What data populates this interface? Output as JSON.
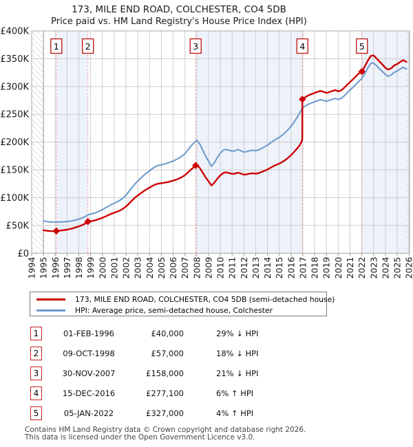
{
  "header": {
    "title": "173, MILE END ROAD, COLCHESTER, CO4 5DB",
    "subtitle": "Price paid vs. HM Land Registry's House Price Index (HPI)"
  },
  "legend": {
    "series1": "173, MILE END ROAD, COLCHESTER, CO4 5DB (semi-detached house)",
    "series2": "HPI: Average price, semi-detached house, Colchester"
  },
  "transactions": [
    {
      "num": "1",
      "date": "01-FEB-1996",
      "price": "£40,000",
      "hpi": "29% ↓ HPI"
    },
    {
      "num": "2",
      "date": "09-OCT-1998",
      "price": "£57,000",
      "hpi": "18% ↓ HPI"
    },
    {
      "num": "3",
      "date": "30-NOV-2007",
      "price": "£158,000",
      "hpi": "21% ↓ HPI"
    },
    {
      "num": "4",
      "date": "15-DEC-2016",
      "price": "£277,100",
      "hpi": "6% ↑ HPI"
    },
    {
      "num": "5",
      "date": "05-JAN-2022",
      "price": "£327,000",
      "hpi": "4% ↑ HPI"
    }
  ],
  "footer": {
    "line1": "Contains HM Land Registry data © Crown copyright and database right 2026.",
    "line2": "This data is licensed under the Open Government Licence v3.0."
  },
  "chart_data": {
    "type": "line",
    "title": "173, MILE END ROAD, COLCHESTER, CO4 5DB — Price paid vs. HPI",
    "x_range": [
      1994,
      2026.05
    ],
    "y_max": 400,
    "y_unit": "GBP thousands",
    "y_tick_labels": [
      "£400K",
      "£350K",
      "£300K",
      "£250K",
      "£200K",
      "£150K",
      "£100K",
      "£50K",
      "£0"
    ],
    "y_tick_values": [
      400,
      350,
      300,
      250,
      200,
      150,
      100,
      50,
      0
    ],
    "x_ticks": [
      1994,
      1995,
      1996,
      1997,
      1998,
      1999,
      2000,
      2001,
      2002,
      2003,
      2004,
      2005,
      2006,
      2007,
      2008,
      2009,
      2010,
      2011,
      2012,
      2013,
      2014,
      2015,
      2016,
      2017,
      2018,
      2019,
      2020,
      2021,
      2022,
      2023,
      2024,
      2025,
      2026
    ],
    "colors": {
      "property": "#cc0000",
      "hpi": "#6e9bcd",
      "band": "#eef2fb",
      "dashed": "#f49a9a",
      "grid": "#cccccc",
      "data_start_line": "#8a8a8a",
      "border": "#aaaaaa",
      "hatch": "#bfbfbf",
      "flag_border": "#c22020"
    },
    "legend_position": "bottom",
    "grid": true,
    "shaded_spans": [
      [
        1996.09,
        1998.77
      ],
      [
        2007.91,
        2016.96
      ],
      [
        2022.01,
        2026.05
      ]
    ],
    "hatch_spans": [
      [
        1994,
        1995
      ],
      [
        2025.78,
        2026.05
      ]
    ],
    "sales": [
      {
        "label": "1",
        "year": 1996.09,
        "value": 40
      },
      {
        "label": "2",
        "year": 1998.77,
        "value": 57
      },
      {
        "label": "3",
        "year": 2007.91,
        "value": 158
      },
      {
        "label": "4",
        "year": 2016.96,
        "value": 277.1
      },
      {
        "label": "5",
        "year": 2022.01,
        "value": 327
      }
    ],
    "series": [
      {
        "name": "price-paid",
        "color_key": "property",
        "points": [
          [
            1995,
            41.5
          ],
          [
            1995.25,
            40.7
          ],
          [
            1995.5,
            40.1
          ],
          [
            1995.75,
            39.9
          ],
          [
            1996.09,
            40
          ],
          [
            1996.25,
            40.3
          ],
          [
            1996.5,
            41
          ],
          [
            1996.75,
            41.7
          ],
          [
            1997,
            42.6
          ],
          [
            1997.25,
            43.7
          ],
          [
            1997.5,
            45
          ],
          [
            1997.75,
            46.7
          ],
          [
            1998,
            48.5
          ],
          [
            1998.25,
            50.4
          ],
          [
            1998.5,
            53
          ],
          [
            1998.77,
            57
          ],
          [
            1999,
            57.7
          ],
          [
            1999.25,
            58.7
          ],
          [
            1999.5,
            60
          ],
          [
            1999.75,
            61.9
          ],
          [
            2000,
            63.9
          ],
          [
            2000.25,
            66.2
          ],
          [
            2000.5,
            68.6
          ],
          [
            2000.75,
            71
          ],
          [
            2001,
            72.9
          ],
          [
            2001.25,
            74.8
          ],
          [
            2001.5,
            77.1
          ],
          [
            2001.75,
            80.2
          ],
          [
            2002,
            84.1
          ],
          [
            2002.25,
            89.2
          ],
          [
            2002.5,
            94.7
          ],
          [
            2002.75,
            99.8
          ],
          [
            2003,
            104
          ],
          [
            2003.25,
            107.9
          ],
          [
            2003.5,
            111.7
          ],
          [
            2003.75,
            115.2
          ],
          [
            2004,
            118.2
          ],
          [
            2004.25,
            121.2
          ],
          [
            2004.5,
            123.8
          ],
          [
            2004.75,
            125.3
          ],
          [
            2005,
            125.9
          ],
          [
            2005.25,
            126.9
          ],
          [
            2005.5,
            127.9
          ],
          [
            2005.75,
            129.3
          ],
          [
            2006,
            130.6
          ],
          [
            2006.25,
            132.4
          ],
          [
            2006.5,
            134.6
          ],
          [
            2006.75,
            137.2
          ],
          [
            2007,
            140.5
          ],
          [
            2007.25,
            145.4
          ],
          [
            2007.5,
            150.3
          ],
          [
            2007.75,
            154.8
          ],
          [
            2007.91,
            158
          ],
          [
            2008,
            159
          ],
          [
            2008.25,
            153.8
          ],
          [
            2008.5,
            145.2
          ],
          [
            2008.75,
            136.6
          ],
          [
            2009,
            129.5
          ],
          [
            2009.25,
            122
          ],
          [
            2009.5,
            127.1
          ],
          [
            2009.75,
            134.4
          ],
          [
            2010,
            140.2
          ],
          [
            2010.25,
            144.4
          ],
          [
            2010.5,
            145.6
          ],
          [
            2010.75,
            144.4
          ],
          [
            2011,
            142.8
          ],
          [
            2011.25,
            143.5
          ],
          [
            2011.5,
            145
          ],
          [
            2011.75,
            143.4
          ],
          [
            2012,
            141.4
          ],
          [
            2012.25,
            142.2
          ],
          [
            2012.5,
            143.3
          ],
          [
            2012.75,
            144
          ],
          [
            2013,
            143.2
          ],
          [
            2013.25,
            144.3
          ],
          [
            2013.5,
            146.2
          ],
          [
            2013.75,
            148.5
          ],
          [
            2014,
            150.7
          ],
          [
            2014.25,
            153.8
          ],
          [
            2014.5,
            156.8
          ],
          [
            2014.75,
            159.1
          ],
          [
            2015,
            161.3
          ],
          [
            2015.25,
            164.3
          ],
          [
            2015.5,
            167.7
          ],
          [
            2015.75,
            171.9
          ],
          [
            2016,
            176.4
          ],
          [
            2016.25,
            182.1
          ],
          [
            2016.5,
            188.2
          ],
          [
            2016.75,
            195
          ],
          [
            2016.9,
            201
          ],
          [
            2016.955,
            206
          ],
          [
            2016.96,
            277.1
          ],
          [
            2017.25,
            281.5
          ],
          [
            2017.5,
            284.5
          ],
          [
            2017.75,
            286.5
          ],
          [
            2018,
            288.5
          ],
          [
            2018.25,
            290.5
          ],
          [
            2018.5,
            292
          ],
          [
            2018.75,
            290.5
          ],
          [
            2019,
            288.5
          ],
          [
            2019.25,
            290
          ],
          [
            2019.5,
            292
          ],
          [
            2019.75,
            293.5
          ],
          [
            2020,
            291.5
          ],
          [
            2020.25,
            293
          ],
          [
            2020.5,
            297.5
          ],
          [
            2020.75,
            303
          ],
          [
            2021,
            308
          ],
          [
            2021.25,
            313
          ],
          [
            2021.5,
            318.5
          ],
          [
            2021.75,
            323.5
          ],
          [
            2022.01,
            327
          ],
          [
            2022.25,
            336
          ],
          [
            2022.5,
            346
          ],
          [
            2022.75,
            355
          ],
          [
            2023,
            356
          ],
          [
            2023.25,
            350.5
          ],
          [
            2023.5,
            345
          ],
          [
            2023.75,
            339.5
          ],
          [
            2024,
            333.5
          ],
          [
            2024.25,
            330.5
          ],
          [
            2024.5,
            333
          ],
          [
            2024.75,
            338
          ],
          [
            2025,
            340.5
          ],
          [
            2025.25,
            344
          ],
          [
            2025.5,
            347.5
          ],
          [
            2025.78,
            344.5
          ]
        ]
      },
      {
        "name": "hpi",
        "color_key": "hpi",
        "points": [
          [
            1995,
            58.5
          ],
          [
            1995.25,
            57.3
          ],
          [
            1995.5,
            56.4
          ],
          [
            1995.75,
            56
          ],
          [
            1996,
            56
          ],
          [
            1996.25,
            56.2
          ],
          [
            1996.5,
            56.4
          ],
          [
            1996.75,
            56.6
          ],
          [
            1997,
            57
          ],
          [
            1997.25,
            57.6
          ],
          [
            1997.5,
            58.6
          ],
          [
            1997.75,
            60
          ],
          [
            1998,
            61.5
          ],
          [
            1998.25,
            63.2
          ],
          [
            1998.5,
            65.5
          ],
          [
            1998.77,
            69
          ],
          [
            1999,
            70.5
          ],
          [
            1999.25,
            71.8
          ],
          [
            1999.5,
            73.5
          ],
          [
            1999.75,
            76
          ],
          [
            2000,
            78.5
          ],
          [
            2000.25,
            81.5
          ],
          [
            2000.5,
            84.5
          ],
          [
            2000.75,
            87.5
          ],
          [
            2001,
            90
          ],
          [
            2001.25,
            92.5
          ],
          [
            2001.5,
            95.5
          ],
          [
            2001.75,
            99.5
          ],
          [
            2002,
            104.5
          ],
          [
            2002.25,
            111
          ],
          [
            2002.5,
            118
          ],
          [
            2002.75,
            124.5
          ],
          [
            2003,
            130
          ],
          [
            2003.25,
            135
          ],
          [
            2003.5,
            140
          ],
          [
            2003.75,
            144.5
          ],
          [
            2004,
            148.5
          ],
          [
            2004.25,
            152.5
          ],
          [
            2004.5,
            156
          ],
          [
            2004.75,
            158
          ],
          [
            2005,
            159
          ],
          [
            2005.25,
            160.5
          ],
          [
            2005.5,
            162
          ],
          [
            2005.75,
            164
          ],
          [
            2006,
            166
          ],
          [
            2006.25,
            168.5
          ],
          [
            2006.5,
            171.5
          ],
          [
            2006.75,
            175
          ],
          [
            2007,
            179.5
          ],
          [
            2007.25,
            186
          ],
          [
            2007.5,
            192.5
          ],
          [
            2007.75,
            198.5
          ],
          [
            2008,
            203.5
          ],
          [
            2008.25,
            197
          ],
          [
            2008.5,
            186
          ],
          [
            2008.75,
            175
          ],
          [
            2009,
            166
          ],
          [
            2009.25,
            156.5
          ],
          [
            2009.5,
            163
          ],
          [
            2009.75,
            172.5
          ],
          [
            2010,
            180
          ],
          [
            2010.25,
            185.5
          ],
          [
            2010.5,
            187
          ],
          [
            2010.75,
            185.5
          ],
          [
            2011,
            183.5
          ],
          [
            2011.25,
            184.5
          ],
          [
            2011.5,
            186.5
          ],
          [
            2011.75,
            184.5
          ],
          [
            2012,
            182
          ],
          [
            2012.25,
            183
          ],
          [
            2012.5,
            184.5
          ],
          [
            2012.75,
            185.5
          ],
          [
            2013,
            184.5
          ],
          [
            2013.25,
            186
          ],
          [
            2013.5,
            188.5
          ],
          [
            2013.75,
            191.5
          ],
          [
            2014,
            194.5
          ],
          [
            2014.25,
            198.5
          ],
          [
            2014.5,
            202.5
          ],
          [
            2014.75,
            205.5
          ],
          [
            2015,
            208.5
          ],
          [
            2015.25,
            212.5
          ],
          [
            2015.5,
            217
          ],
          [
            2015.75,
            222.5
          ],
          [
            2016,
            228.5
          ],
          [
            2016.25,
            236
          ],
          [
            2016.5,
            244
          ],
          [
            2016.75,
            253
          ],
          [
            2016.96,
            261
          ],
          [
            2017.25,
            265.5
          ],
          [
            2017.5,
            268.5
          ],
          [
            2017.75,
            270.5
          ],
          [
            2018,
            272.5
          ],
          [
            2018.25,
            274.5
          ],
          [
            2018.5,
            276.5
          ],
          [
            2018.75,
            275
          ],
          [
            2019,
            273.5
          ],
          [
            2019.25,
            275
          ],
          [
            2019.5,
            277
          ],
          [
            2019.75,
            278.5
          ],
          [
            2020,
            277
          ],
          [
            2020.25,
            278.5
          ],
          [
            2020.5,
            283
          ],
          [
            2020.75,
            288.5
          ],
          [
            2021,
            293.5
          ],
          [
            2021.25,
            298.5
          ],
          [
            2021.5,
            304
          ],
          [
            2021.75,
            309.5
          ],
          [
            2022.01,
            314.5
          ],
          [
            2022.25,
            323
          ],
          [
            2022.5,
            333
          ],
          [
            2022.75,
            341.5
          ],
          [
            2023,
            342.5
          ],
          [
            2023.25,
            337.5
          ],
          [
            2023.5,
            332
          ],
          [
            2023.75,
            327
          ],
          [
            2024,
            321.5
          ],
          [
            2024.25,
            318.5
          ],
          [
            2024.5,
            321
          ],
          [
            2024.75,
            325.5
          ],
          [
            2025,
            328
          ],
          [
            2025.25,
            331.5
          ],
          [
            2025.5,
            334.5
          ],
          [
            2025.78,
            331.5
          ]
        ]
      }
    ]
  }
}
